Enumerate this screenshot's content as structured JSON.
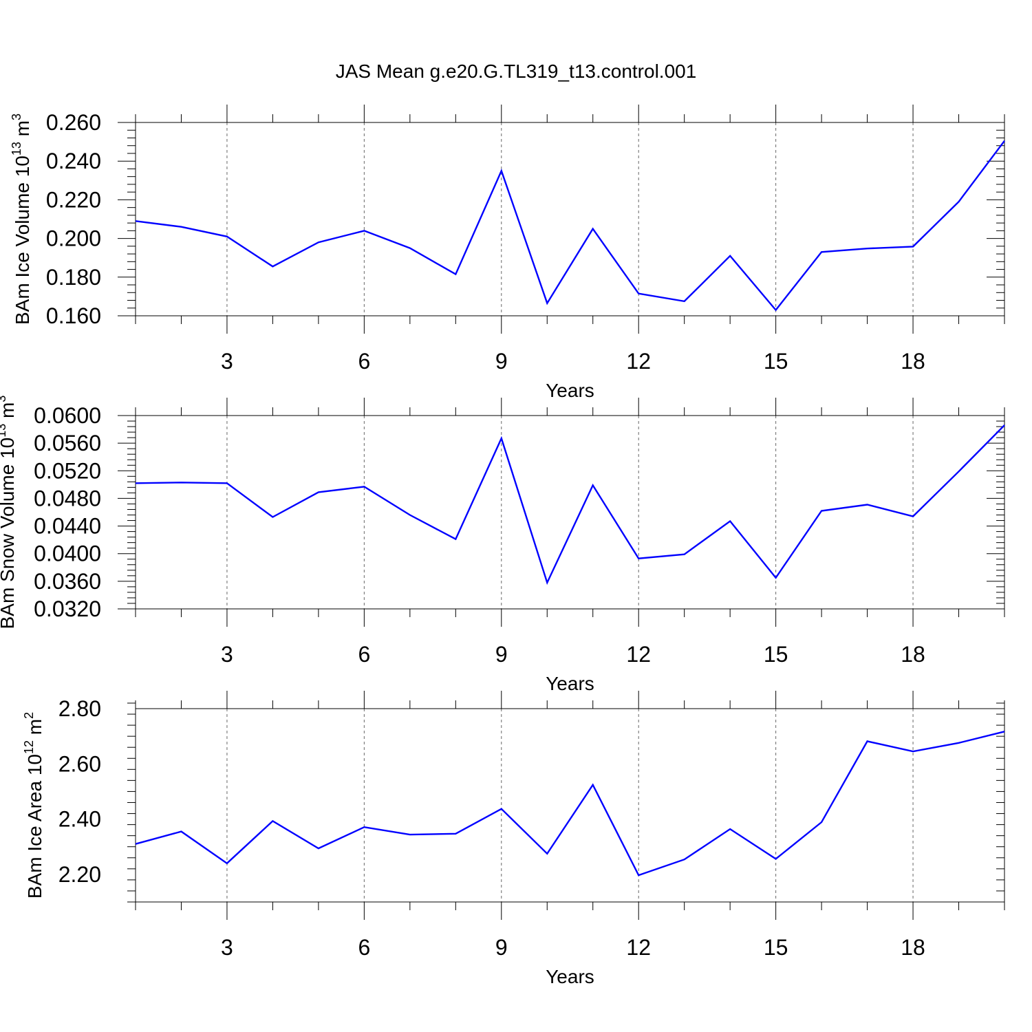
{
  "title": "JAS Mean g.e20.G.TL319_t13.control.001",
  "colors": {
    "line": "#0000ff",
    "axis": "#000000",
    "background": "#ffffff"
  },
  "chart_data": [
    {
      "type": "line",
      "title": "JAS Mean g.e20.G.TL319_t13.control.001",
      "xlabel": "Years",
      "ylabel_main": "BAm Ice Volume 10",
      "ylabel_sup": "13",
      "ylabel_unit": " m",
      "ylabel_unit_sup": "3",
      "xlim": [
        1,
        20
      ],
      "ylim": [
        0.16,
        0.26
      ],
      "xticks": [
        3,
        6,
        9,
        12,
        15,
        18
      ],
      "xtick_labels": [
        "3",
        "6",
        "9",
        "12",
        "15",
        "18"
      ],
      "yticks": [
        0.16,
        0.18,
        0.2,
        0.22,
        0.24,
        0.26
      ],
      "ytick_labels": [
        "0.160",
        "0.180",
        "0.200",
        "0.220",
        "0.240",
        "0.260"
      ],
      "grid": "vertical dashed at x ticks",
      "x": [
        1,
        2,
        3,
        4,
        5,
        6,
        7,
        8,
        9,
        10,
        11,
        12,
        13,
        14,
        15,
        16,
        17,
        18,
        19,
        20
      ],
      "values": [
        0.209,
        0.206,
        0.201,
        0.1855,
        0.198,
        0.204,
        0.195,
        0.1815,
        0.235,
        0.1665,
        0.205,
        0.1715,
        0.1675,
        0.191,
        0.163,
        0.193,
        0.1948,
        0.1958,
        0.219,
        0.2505
      ]
    },
    {
      "type": "line",
      "xlabel": "Years",
      "ylabel_main": "BAm Snow Volume 10",
      "ylabel_sup": "13",
      "ylabel_unit": " m",
      "ylabel_unit_sup": "3",
      "xlim": [
        1,
        20
      ],
      "ylim": [
        0.032,
        0.06
      ],
      "xticks": [
        3,
        6,
        9,
        12,
        15,
        18
      ],
      "xtick_labels": [
        "3",
        "6",
        "9",
        "12",
        "15",
        "18"
      ],
      "yticks": [
        0.032,
        0.036,
        0.04,
        0.044,
        0.048,
        0.052,
        0.056,
        0.06
      ],
      "ytick_labels": [
        "0.0320",
        "0.0360",
        "0.0400",
        "0.0440",
        "0.0480",
        "0.0520",
        "0.0560",
        "0.0600"
      ],
      "grid": "vertical dashed at x ticks",
      "x": [
        1,
        2,
        3,
        4,
        5,
        6,
        7,
        8,
        9,
        10,
        11,
        12,
        13,
        14,
        15,
        16,
        17,
        18,
        19,
        20
      ],
      "values": [
        0.0502,
        0.0503,
        0.0502,
        0.0453,
        0.0489,
        0.0497,
        0.0456,
        0.0421,
        0.0567,
        0.0358,
        0.0499,
        0.0393,
        0.0399,
        0.0447,
        0.0365,
        0.0462,
        0.0471,
        0.0454,
        0.0519,
        0.0586
      ]
    },
    {
      "type": "line",
      "xlabel": "Years",
      "ylabel_main": "BAm Ice Area 10",
      "ylabel_sup": "12",
      "ylabel_unit": " m",
      "ylabel_unit_sup": "2",
      "xlim": [
        1,
        20
      ],
      "ylim": [
        2.1,
        2.8
      ],
      "xticks": [
        3,
        6,
        9,
        12,
        15,
        18
      ],
      "xtick_labels": [
        "3",
        "6",
        "9",
        "12",
        "15",
        "18"
      ],
      "yticks": [
        2.2,
        2.4,
        2.6,
        2.8
      ],
      "ytick_labels": [
        "2.20",
        "2.40",
        "2.60",
        "2.80"
      ],
      "grid": "vertical dashed at x ticks",
      "x": [
        1,
        2,
        3,
        4,
        5,
        6,
        7,
        8,
        9,
        10,
        11,
        12,
        13,
        14,
        15,
        16,
        17,
        18,
        19,
        20
      ],
      "values": [
        2.31,
        2.355,
        2.24,
        2.393,
        2.294,
        2.371,
        2.344,
        2.347,
        2.437,
        2.275,
        2.524,
        2.197,
        2.254,
        2.364,
        2.256,
        2.389,
        2.682,
        2.645,
        2.676,
        2.717
      ]
    }
  ]
}
